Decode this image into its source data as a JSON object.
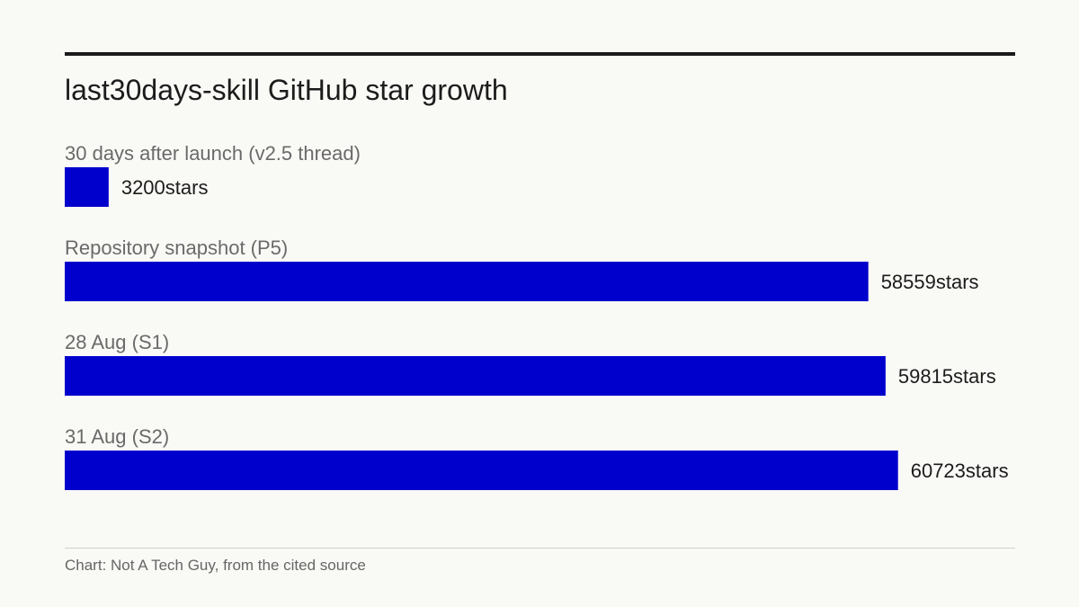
{
  "chart_data": {
    "type": "bar",
    "orientation": "horizontal",
    "title": "last30days-skill GitHub star growth",
    "categories": [
      "30 days after launch (v2.5 thread)",
      "Repository snapshot (P5)",
      "28 Aug (S1)",
      "31 Aug (S2)"
    ],
    "values": [
      3200,
      58559,
      59815,
      60723
    ],
    "value_labels": [
      "3200stars",
      "58559stars",
      "59815stars",
      "60723stars"
    ],
    "unit": "stars",
    "xlim": [
      0,
      65000
    ],
    "grid": false,
    "legend": "none",
    "bar_color": "#0000cc",
    "source": "Chart: Not A Tech Guy, from the cited source"
  }
}
